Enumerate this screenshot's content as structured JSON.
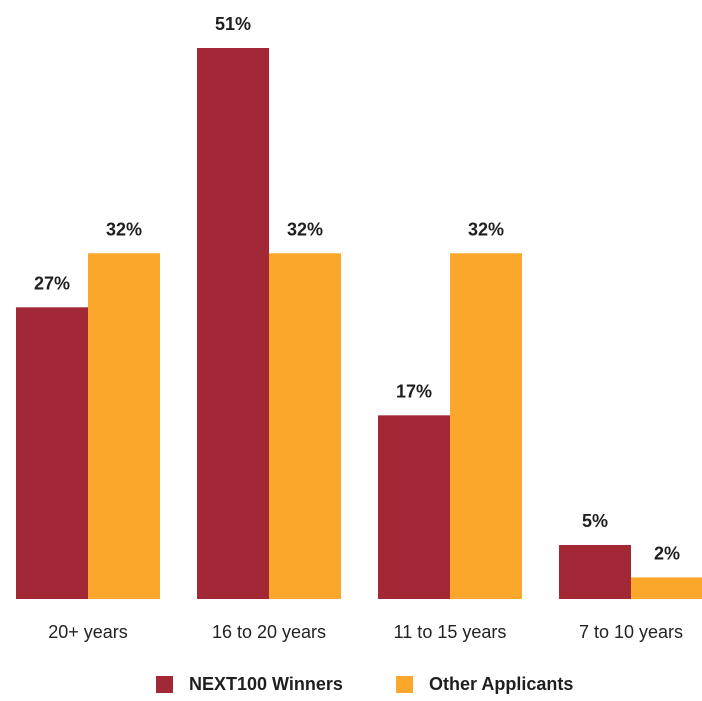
{
  "chart_data": {
    "type": "bar",
    "categories": [
      "20+ years",
      "16 to 20 years",
      "11 to 15 years",
      "7 to 10 years"
    ],
    "series": [
      {
        "name": "NEXT100 Winners",
        "values": [
          27,
          51,
          17,
          5
        ],
        "labels": [
          "27%",
          "51%",
          "17%",
          "5%"
        ],
        "color": "#a32835"
      },
      {
        "name": "Other Applicants",
        "values": [
          32,
          32,
          32,
          2
        ],
        "labels": [
          "32%",
          "32%",
          "32%",
          "2%"
        ],
        "color": "#fba72c"
      }
    ],
    "ylim": [
      0,
      51
    ],
    "grid": false,
    "legend_position": "bottom-center",
    "title": "",
    "xlabel": "",
    "ylabel": ""
  }
}
